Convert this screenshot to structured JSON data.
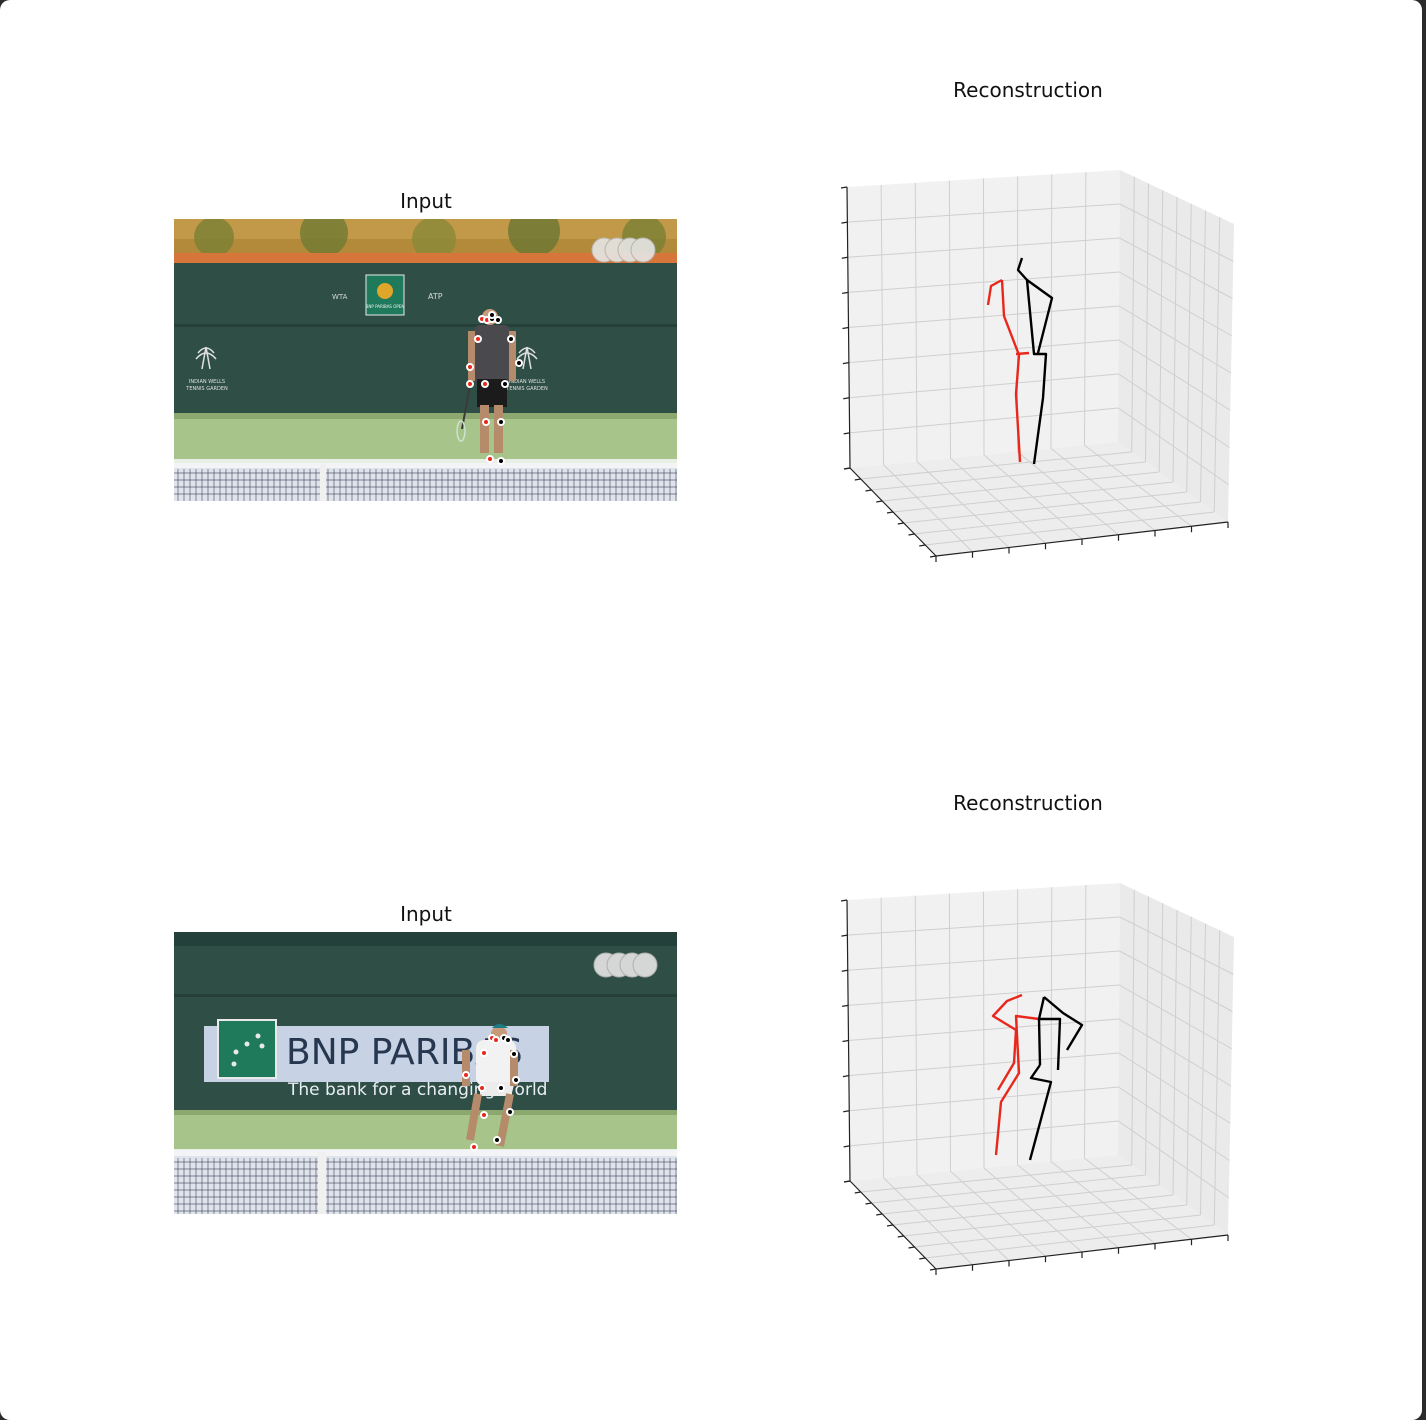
{
  "panels": [
    {
      "input_title": "Input",
      "reconstruction_title": "Reconstruction",
      "scene": {
        "sponsor_logos": [
          "WTA",
          "BNP PARIBAS OPEN",
          "ATP"
        ],
        "venue_text_line1": "INDIAN WELLS",
        "venue_text_line2": "TENNIS GARDEN"
      }
    },
    {
      "input_title": "Input",
      "reconstruction_title": "Reconstruction",
      "scene": {
        "banner_title": "BNP PARIBAS",
        "banner_subtitle": "The bank for a changing world"
      }
    }
  ],
  "colors": {
    "left_limb": "#e8281c",
    "right_limb": "#000000",
    "court_green": "#9fbf7a",
    "wall_green": "#2f4f46",
    "pane_gray": "#f1f1f1",
    "grid_line": "#cfcfcf"
  }
}
